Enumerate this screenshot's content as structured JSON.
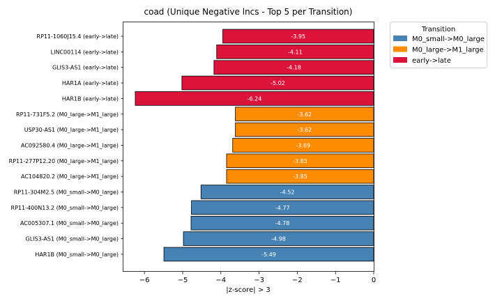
{
  "chart_data": {
    "type": "bar",
    "orientation": "horizontal",
    "title": "coad (Unique Negative lncs - Top 5 per Transition)",
    "xlabel": "|z-score| > 3",
    "ylabel": "",
    "xlim": [
      -6.55,
      0
    ],
    "xticks": [
      "−6",
      "−5",
      "−4",
      "−3",
      "−2",
      "−1",
      "0"
    ],
    "xtick_values": [
      -6,
      -5,
      -4,
      -3,
      -2,
      -1,
      0
    ],
    "grid": false,
    "legend_position": "outside-top-right",
    "legend_title": "Transition",
    "series": [
      {
        "name": "M0_small->M0_large",
        "color": "#4682b4"
      },
      {
        "name": "M0_large->M1_large",
        "color": "#ff8c00"
      },
      {
        "name": "early->late",
        "color": "#dc143c"
      }
    ],
    "bars": [
      {
        "label": "RP11-1060J15.4 (early->late)",
        "value": -3.95,
        "value_label": "-3.95",
        "series": 2
      },
      {
        "label": "LINC00114 (early->late)",
        "value": -4.11,
        "value_label": "-4.11",
        "series": 2
      },
      {
        "label": "GLIS3-AS1 (early->late)",
        "value": -4.18,
        "value_label": "-4.18",
        "series": 2
      },
      {
        "label": "HAR1A (early->late)",
        "value": -5.02,
        "value_label": "-5.02",
        "series": 2
      },
      {
        "label": "HAR1B (early->late)",
        "value": -6.24,
        "value_label": "-6.24",
        "series": 2
      },
      {
        "label": "RP11-731F5.2 (M0_large->M1_large)",
        "value": -3.62,
        "value_label": "-3.62",
        "series": 1
      },
      {
        "label": "USP30-AS1 (M0_large->M1_large)",
        "value": -3.62,
        "value_label": "-3.62",
        "series": 1
      },
      {
        "label": "AC092580.4 (M0_large->M1_large)",
        "value": -3.69,
        "value_label": "-3.69",
        "series": 1
      },
      {
        "label": "RP11-277P12.20 (M0_large->M1_large)",
        "value": -3.85,
        "value_label": "-3.85",
        "series": 1
      },
      {
        "label": "AC104820.2 (M0_large->M1_large)",
        "value": -3.85,
        "value_label": "-3.85",
        "series": 1
      },
      {
        "label": "RP11-304M2.5 (M0_small->M0_large)",
        "value": -4.52,
        "value_label": "-4.52",
        "series": 0
      },
      {
        "label": "RP11-400N13.2 (M0_small->M0_large)",
        "value": -4.77,
        "value_label": "-4.77",
        "series": 0
      },
      {
        "label": "AC005307.1 (M0_small->M0_large)",
        "value": -4.78,
        "value_label": "-4.78",
        "series": 0
      },
      {
        "label": "GLIS3-AS1 (M0_small->M0_large)",
        "value": -4.98,
        "value_label": "-4.98",
        "series": 0
      },
      {
        "label": "HAR1B (M0_small->M0_large)",
        "value": -5.49,
        "value_label": "-5.49",
        "series": 0
      }
    ]
  }
}
